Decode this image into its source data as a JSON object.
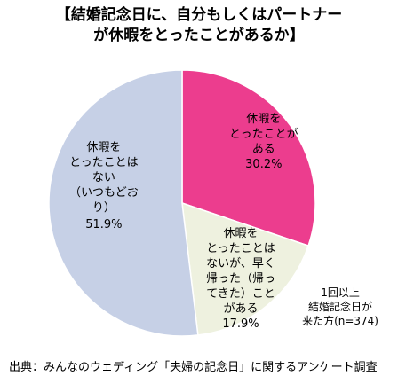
{
  "chart_data": {
    "type": "pie",
    "title_line1": "【結婚記念日に、自分もしくはパートナー",
    "title_line2": "が休暇をとったことがあるか】",
    "slices": [
      {
        "label": "休暇を\nとったことが\nある",
        "value": 30.2,
        "value_label": "30.2%",
        "color": "#ec3d8e"
      },
      {
        "label": "休暇を\nとったことは\nないが、早く\n帰った（帰っ\nてきた）こと\nがある",
        "value": 17.9,
        "value_label": "17.9%",
        "color": "#eef1df"
      },
      {
        "label": "休暇を\nとったことは\nない\n（いつもどお\nり）",
        "value": 51.9,
        "value_label": "51.9%",
        "color": "#c6d0e6"
      }
    ]
  },
  "note": [
    "1回以上",
    "結婚記念日が",
    "来た方(n=374)"
  ],
  "source": "出典：みんなのウェディング「夫婦の記念日」に関するアンケート調査"
}
